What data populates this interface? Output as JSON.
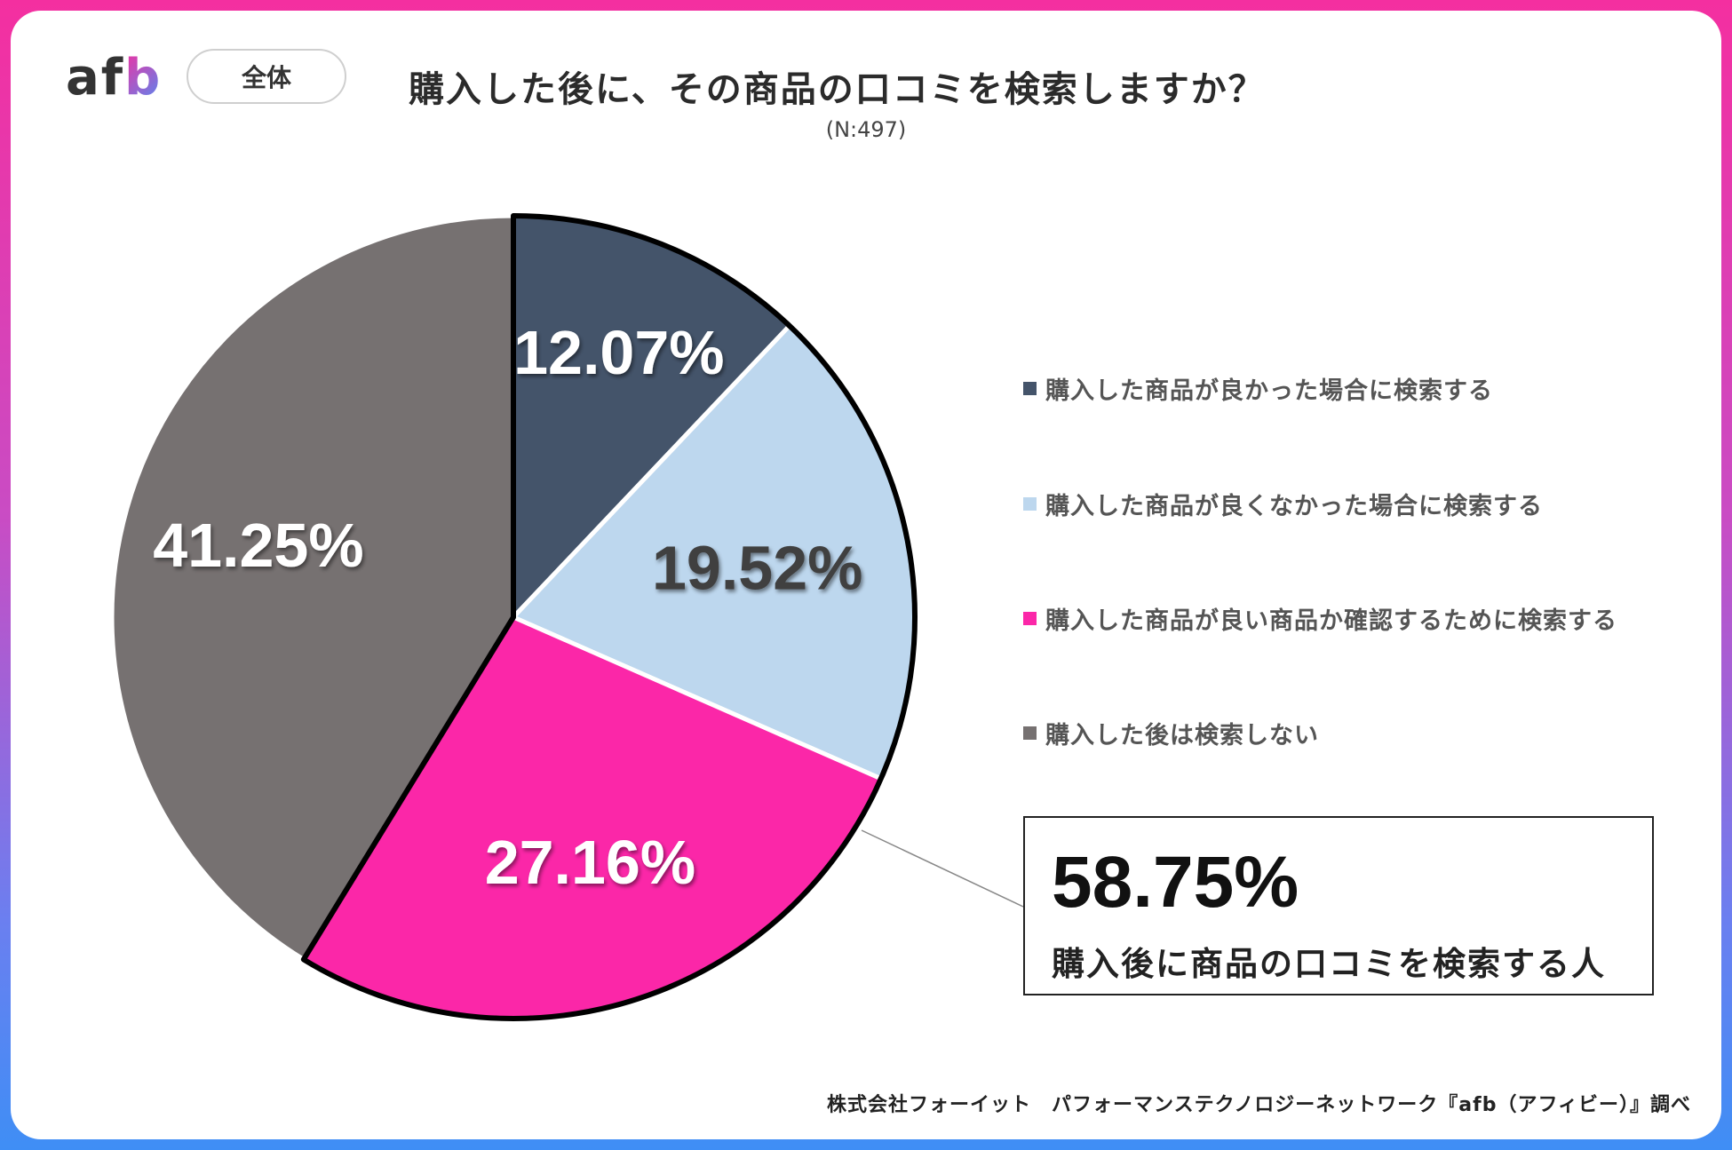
{
  "brand": {
    "logo_text_a": "af",
    "logo_text_b": "b"
  },
  "filter_pill": {
    "label": "全体"
  },
  "header": {
    "title": "購入した後に、その商品の口コミを検索しますか？",
    "sample_size": "(N:497)"
  },
  "colors": {
    "navy": "#44546a",
    "light_blue": "#bdd7ee",
    "pink": "#fb27a8",
    "gray": "#767171"
  },
  "chart_data": {
    "type": "pie",
    "title": "購入した後に、その商品の口コミを検索しますか？",
    "slices": [
      {
        "label": "購入した商品が良かった場合に検索する",
        "value": 12.07,
        "display": "12.07%",
        "color": "#44546a"
      },
      {
        "label": "購入した商品が良くなかった場合に検索する",
        "value": 19.52,
        "display": "19.52%",
        "color": "#bdd7ee"
      },
      {
        "label": "購入した商品が良い商品か確認するために検索する",
        "value": 27.16,
        "display": "27.16%",
        "color": "#fb27a8"
      },
      {
        "label": "購入した後は検索しない",
        "value": 41.25,
        "display": "41.25%",
        "color": "#767171"
      }
    ],
    "legend_position": "right",
    "highlight": {
      "value": "58.75%",
      "caption": "購入後に商品の口コミを検索する人"
    }
  },
  "footer": {
    "source": "株式会社フォーイット　パフォーマンステクノロジーネットワーク『afb（アフィビー）』調べ"
  }
}
